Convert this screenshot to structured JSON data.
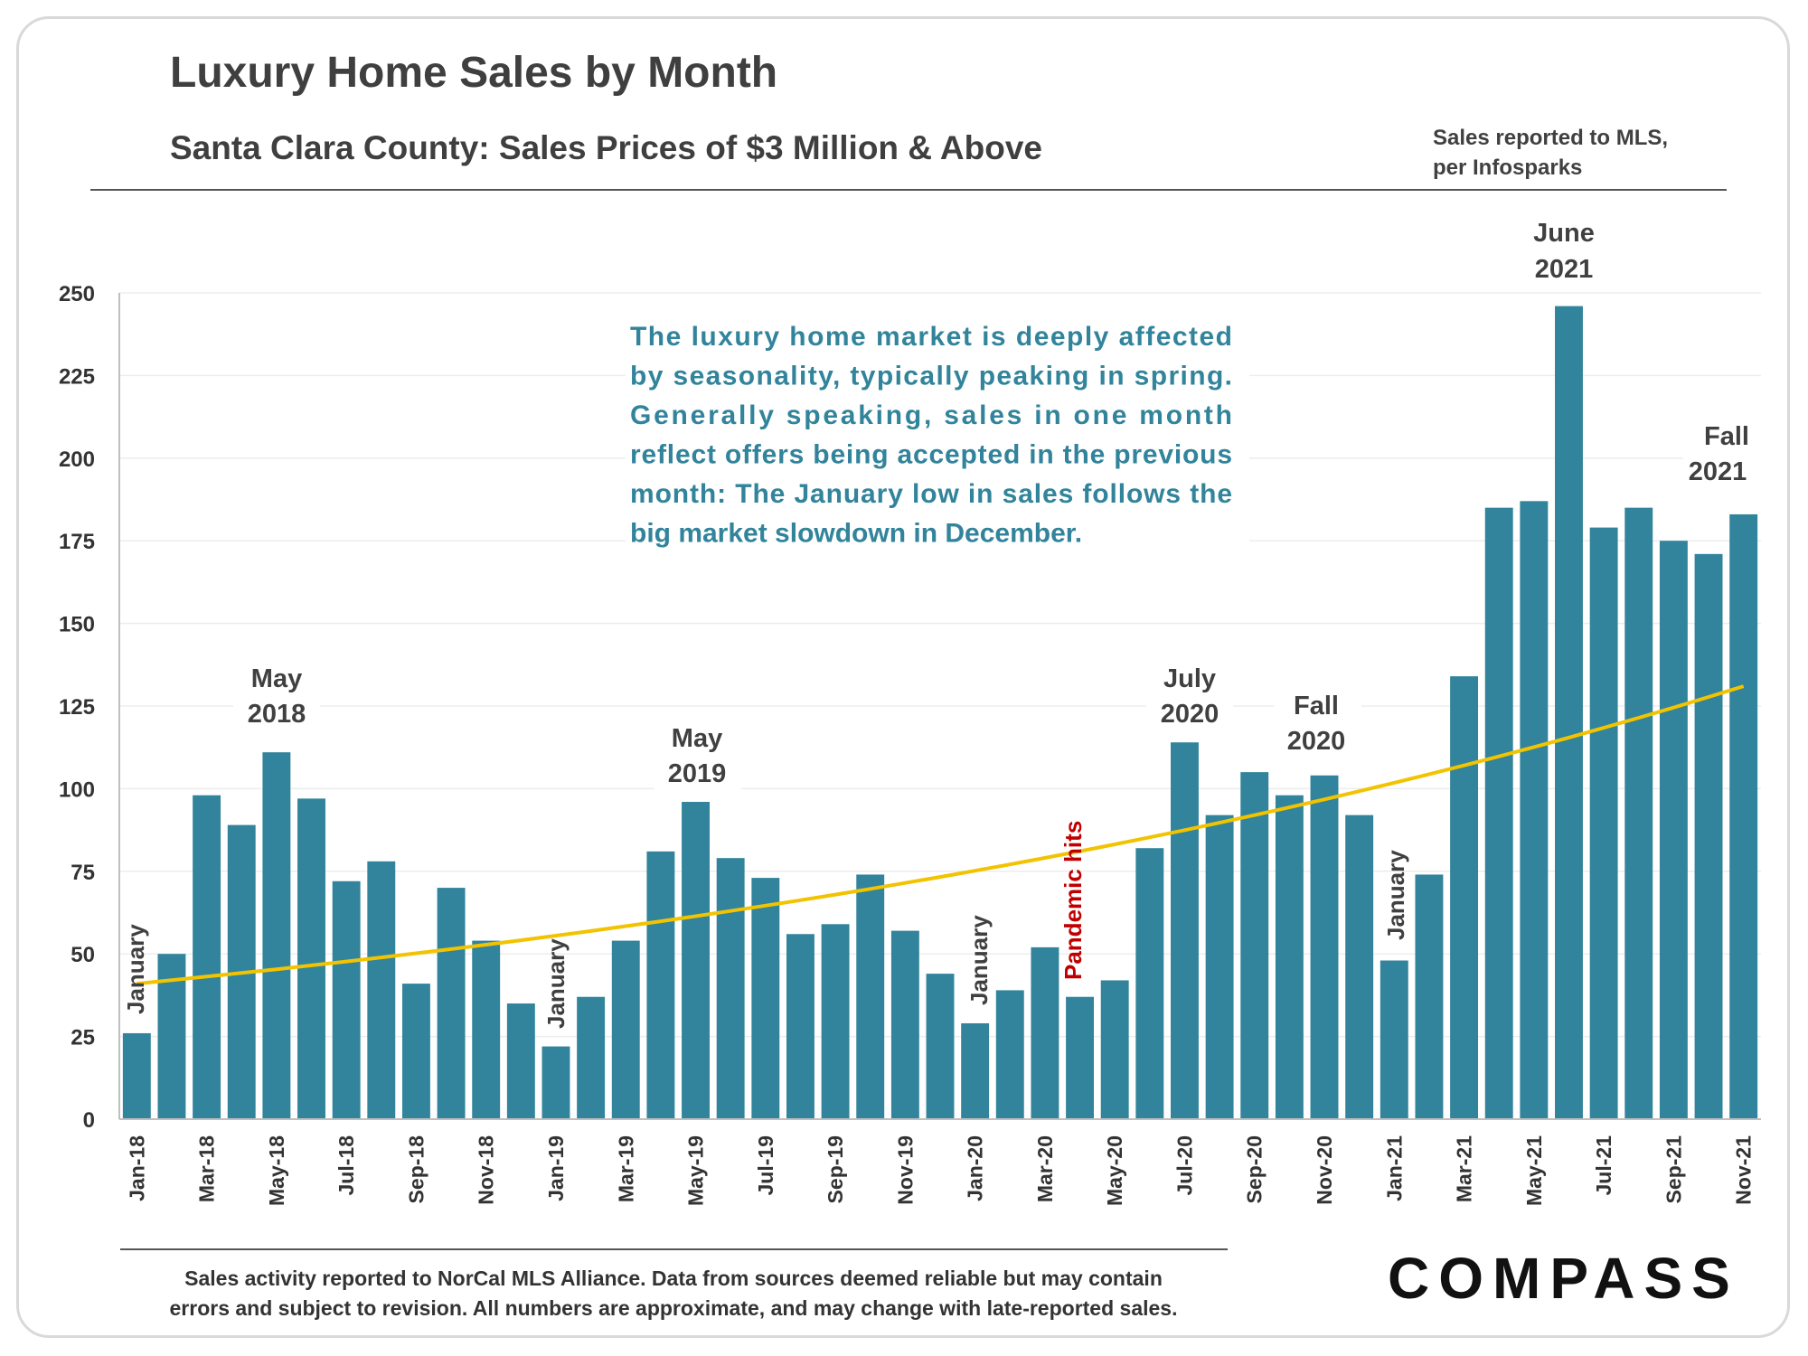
{
  "header": {
    "title": "Luxury Home Sales by Month",
    "subtitle": "Santa Clara County: Sales Prices of $3 Million & Above",
    "source_line1": "Sales reported to MLS,",
    "source_line2": "per Infosparks"
  },
  "annotations": {
    "may2018": [
      "May",
      "2018"
    ],
    "may2019": [
      "May",
      "2019"
    ],
    "jul2020": [
      "July",
      "2020"
    ],
    "fall2020": [
      "Fall",
      "2020"
    ],
    "jun2021": [
      "June",
      "2021"
    ],
    "fall2021": [
      "Fall",
      "2021"
    ],
    "january": "January",
    "pandemic": "Pandemic hits"
  },
  "note_lines": [
    "The luxury home market is deeply affected",
    "by seasonality, typically peaking in spring.",
    "Generally speaking, sales in one month",
    "reflect offers being accepted in the previous",
    "month: The January low in sales follows the",
    "big market slowdown in December."
  ],
  "footer": {
    "line1": "Sales activity reported to NorCal MLS Alliance. Data from sources deemed reliable but may contain",
    "line2": "errors and subject to revision. All numbers are approximate, and may change with late-reported sales."
  },
  "logo": "COMPASS",
  "colors": {
    "bar": "#31849b",
    "trend": "#f2c300",
    "note_text": "#31849b",
    "pandemic_text": "#c00000"
  },
  "chart_data": {
    "type": "bar",
    "title": "Luxury Home Sales by Month",
    "subtitle": "Santa Clara County: Sales Prices of $3 Million & Above",
    "categories": [
      "Jan-18",
      "Feb-18",
      "Mar-18",
      "Apr-18",
      "May-18",
      "Jun-18",
      "Jul-18",
      "Aug-18",
      "Sep-18",
      "Oct-18",
      "Nov-18",
      "Dec-18",
      "Jan-19",
      "Feb-19",
      "Mar-19",
      "Apr-19",
      "May-19",
      "Jun-19",
      "Jul-19",
      "Aug-19",
      "Sep-19",
      "Oct-19",
      "Nov-19",
      "Dec-19",
      "Jan-20",
      "Feb-20",
      "Mar-20",
      "Apr-20",
      "May-20",
      "Jun-20",
      "Jul-20",
      "Aug-20",
      "Sep-20",
      "Oct-20",
      "Nov-20",
      "Dec-20",
      "Jan-21",
      "Feb-21",
      "Mar-21",
      "Apr-21",
      "May-21",
      "Jun-21",
      "Jul-21",
      "Aug-21",
      "Sep-21",
      "Oct-21",
      "Nov-21"
    ],
    "x_tick_labels": [
      "Jan-18",
      "Mar-18",
      "May-18",
      "Jul-18",
      "Sep-18",
      "Nov-18",
      "Jan-19",
      "Mar-19",
      "May-19",
      "Jul-19",
      "Sep-19",
      "Nov-19",
      "Jan-20",
      "Mar-20",
      "May-20",
      "Jul-20",
      "Sep-20",
      "Nov-20",
      "Jan-21",
      "Mar-21",
      "May-21",
      "Jul-21",
      "Sep-21",
      "Nov-21"
    ],
    "values": [
      26,
      50,
      98,
      89,
      111,
      97,
      72,
      78,
      41,
      70,
      54,
      35,
      22,
      37,
      54,
      81,
      96,
      79,
      73,
      56,
      59,
      74,
      57,
      44,
      29,
      39,
      52,
      37,
      42,
      82,
      114,
      92,
      105,
      98,
      104,
      92,
      48,
      74,
      134,
      185,
      187,
      246,
      179,
      185,
      175,
      171,
      183
    ],
    "trendline": {
      "type": "exponential",
      "start": 41,
      "end": 131
    },
    "ylim": [
      0,
      250
    ],
    "yticks": [
      0,
      25,
      50,
      75,
      100,
      125,
      150,
      175,
      200,
      225,
      250
    ],
    "grid": true,
    "legend": "none"
  }
}
